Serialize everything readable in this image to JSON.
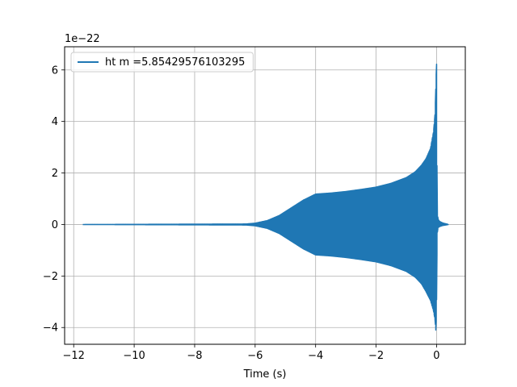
{
  "chart_data": {
    "type": "line",
    "title": "",
    "xlabel": "Time (s)",
    "ylabel": "",
    "y_offset_label": "1e−22",
    "xlim": [
      -12.3,
      0.95
    ],
    "ylim": [
      -4.65,
      6.9
    ],
    "x_ticks": [
      -12,
      -10,
      -8,
      -6,
      -4,
      -2,
      0
    ],
    "x_tick_labels": [
      "−12",
      "−10",
      "−8",
      "−6",
      "−4",
      "−2",
      "0"
    ],
    "y_ticks": [
      -4,
      -2,
      0,
      2,
      4,
      6
    ],
    "y_tick_labels": [
      "−4",
      "−2",
      "0",
      "2",
      "4",
      "6"
    ],
    "grid": true,
    "legend": {
      "placement": "top-left"
    },
    "series": [
      {
        "name": "ht m =5.85429576103295",
        "color": "#1f77b4",
        "x_start": -11.7,
        "x_end": 0.4,
        "envelope": {
          "x": [
            -11.7,
            -6.3,
            -6.0,
            -5.6,
            -5.2,
            -4.8,
            -4.4,
            -4.0,
            -3.5,
            -3.0,
            -2.5,
            -2.0,
            -1.5,
            -1.0,
            -0.7,
            -0.5,
            -0.35,
            -0.2,
            -0.1,
            -0.05,
            -0.02,
            0.0,
            0.02,
            0.05,
            0.1,
            0.2,
            0.4
          ],
          "upper": [
            0.0,
            0.02,
            0.05,
            0.15,
            0.35,
            0.65,
            0.95,
            1.18,
            1.22,
            1.28,
            1.36,
            1.45,
            1.6,
            1.82,
            2.05,
            2.3,
            2.55,
            2.95,
            3.6,
            4.3,
            5.5,
            6.4,
            0.5,
            0.2,
            0.12,
            0.06,
            0.0
          ],
          "lower": [
            0.0,
            -0.02,
            -0.05,
            -0.15,
            -0.35,
            -0.65,
            -0.95,
            -1.18,
            -1.22,
            -1.28,
            -1.36,
            -1.45,
            -1.6,
            -1.82,
            -2.05,
            -2.3,
            -2.6,
            -2.95,
            -3.35,
            -3.7,
            -4.2,
            -3.0,
            -0.35,
            -0.12,
            -0.08,
            -0.04,
            0.0
          ]
        }
      }
    ]
  }
}
